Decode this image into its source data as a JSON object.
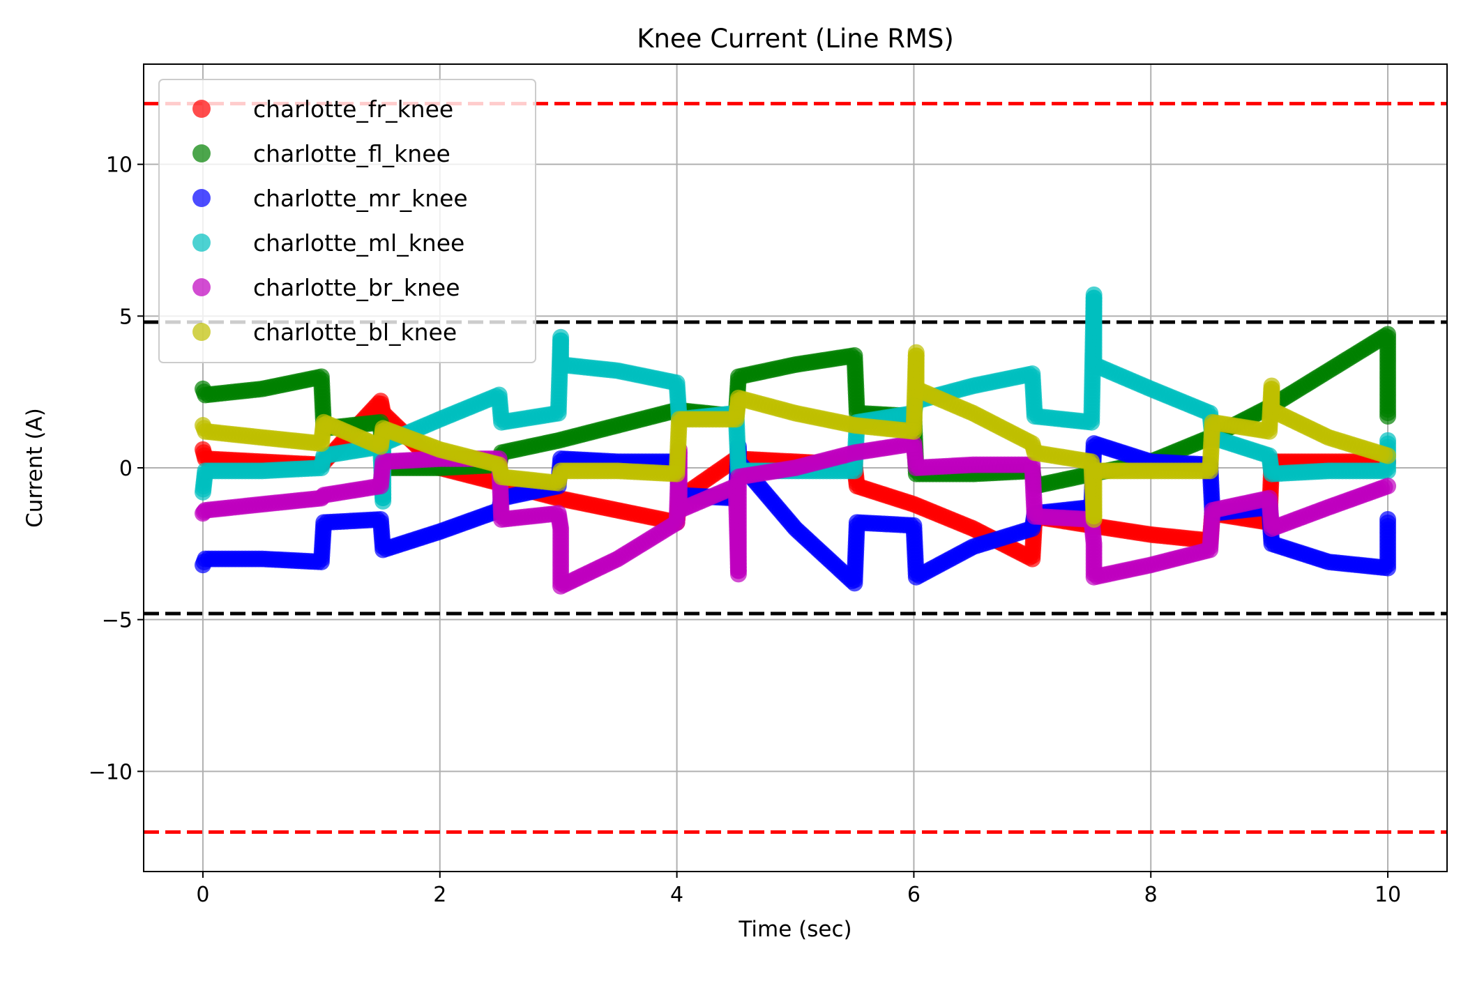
{
  "chart_data": {
    "type": "scatter",
    "title": "Knee Current (Line RMS)",
    "xlabel": "Time (sec)",
    "ylabel": "Current (A)",
    "xlim": [
      -0.5,
      10.5
    ],
    "ylim": [
      -13.3,
      13.3
    ],
    "xticks": [
      0,
      2,
      4,
      6,
      8,
      10
    ],
    "yticks": [
      -10,
      -5,
      0,
      5,
      10
    ],
    "xtick_labels": [
      "0",
      "2",
      "4",
      "6",
      "8",
      "10"
    ],
    "ytick_labels": [
      "−10",
      "−5",
      "0",
      "5",
      "10"
    ],
    "grid": true,
    "legend_position": "upper-left",
    "reference_lines": [
      {
        "y": 12,
        "color": "#ff0000",
        "style": "dashed"
      },
      {
        "y": -12,
        "color": "#ff0000",
        "style": "dashed"
      },
      {
        "y": 4.8,
        "color": "#000000",
        "style": "dashed"
      },
      {
        "y": -4.8,
        "color": "#000000",
        "style": "dashed"
      }
    ],
    "series": [
      {
        "name": "charlotte_fr_knee",
        "color": "#ff0000",
        "points": [
          [
            0,
            0.6
          ],
          [
            0.02,
            0.3
          ],
          [
            0.5,
            0.2
          ],
          [
            1.0,
            0.1
          ],
          [
            1.5,
            2.2
          ],
          [
            1.52,
            1.8
          ],
          [
            2.0,
            0.0
          ],
          [
            2.5,
            -0.5
          ],
          [
            3.0,
            -1.0
          ],
          [
            3.5,
            -1.4
          ],
          [
            4.0,
            -1.8
          ],
          [
            4.02,
            -1.0
          ],
          [
            4.5,
            0.3
          ],
          [
            5.0,
            0.2
          ],
          [
            5.5,
            0.1
          ],
          [
            5.52,
            -0.6
          ],
          [
            6.0,
            -1.2
          ],
          [
            6.5,
            -2.0
          ],
          [
            7.0,
            -3.0
          ],
          [
            7.02,
            -1.6
          ],
          [
            7.5,
            -1.9
          ],
          [
            8.0,
            -2.2
          ],
          [
            8.5,
            -2.4
          ],
          [
            8.52,
            -1.5
          ],
          [
            9.0,
            -1.8
          ],
          [
            9.02,
            0.2
          ],
          [
            9.5,
            0.2
          ],
          [
            10.0,
            0.2
          ]
        ]
      },
      {
        "name": "charlotte_fl_knee",
        "color": "#008000",
        "points": [
          [
            0,
            2.6
          ],
          [
            0.02,
            2.4
          ],
          [
            0.5,
            2.6
          ],
          [
            1.0,
            3.0
          ],
          [
            1.02,
            1.3
          ],
          [
            1.5,
            1.5
          ],
          [
            1.52,
            0.0
          ],
          [
            2.0,
            0.0
          ],
          [
            2.5,
            0.1
          ],
          [
            2.52,
            0.5
          ],
          [
            3.0,
            0.9
          ],
          [
            3.5,
            1.4
          ],
          [
            4.0,
            1.9
          ],
          [
            4.5,
            1.7
          ],
          [
            4.52,
            3.0
          ],
          [
            5.0,
            3.4
          ],
          [
            5.5,
            3.7
          ],
          [
            5.52,
            1.8
          ],
          [
            6.0,
            1.7
          ],
          [
            6.02,
            -0.2
          ],
          [
            6.5,
            -0.2
          ],
          [
            7.0,
            -0.1
          ],
          [
            7.02,
            -0.6
          ],
          [
            7.5,
            -0.2
          ],
          [
            8.0,
            0.2
          ],
          [
            8.5,
            1.0
          ],
          [
            9.0,
            2.0
          ],
          [
            9.5,
            3.2
          ],
          [
            10.0,
            4.4
          ],
          [
            10.0,
            1.7
          ]
        ]
      },
      {
        "name": "charlotte_mr_knee",
        "color": "#0000ff",
        "points": [
          [
            0,
            -3.2
          ],
          [
            0.02,
            -3.0
          ],
          [
            0.5,
            -3.0
          ],
          [
            1.0,
            -3.1
          ],
          [
            1.02,
            -1.8
          ],
          [
            1.5,
            -1.7
          ],
          [
            1.52,
            -2.7
          ],
          [
            2.0,
            -2.1
          ],
          [
            2.5,
            -1.4
          ],
          [
            2.52,
            -1.0
          ],
          [
            3.0,
            -0.6
          ],
          [
            3.02,
            0.3
          ],
          [
            3.5,
            0.2
          ],
          [
            4.0,
            0.2
          ],
          [
            4.02,
            -0.9
          ],
          [
            4.5,
            -1.0
          ],
          [
            4.52,
            0.7
          ],
          [
            4.52,
            0.2
          ],
          [
            5.0,
            -2.0
          ],
          [
            5.5,
            -3.8
          ],
          [
            5.52,
            -1.8
          ],
          [
            6.0,
            -1.9
          ],
          [
            6.02,
            -3.6
          ],
          [
            6.5,
            -2.6
          ],
          [
            7.0,
            -2.0
          ],
          [
            7.02,
            -1.5
          ],
          [
            7.5,
            -1.3
          ],
          [
            7.52,
            0.8
          ],
          [
            8.0,
            0.2
          ],
          [
            8.5,
            0.1
          ],
          [
            8.52,
            -1.5
          ],
          [
            9.0,
            -1.3
          ],
          [
            9.02,
            -2.5
          ],
          [
            9.5,
            -3.1
          ],
          [
            10.0,
            -3.3
          ],
          [
            10.0,
            -1.7
          ]
        ]
      },
      {
        "name": "charlotte_ml_knee",
        "color": "#00bfbf",
        "points": [
          [
            0,
            -0.8
          ],
          [
            0.02,
            -0.1
          ],
          [
            0.5,
            -0.1
          ],
          [
            1.0,
            0.0
          ],
          [
            1.02,
            0.4
          ],
          [
            1.5,
            0.7
          ],
          [
            1.52,
            -1.1
          ],
          [
            1.52,
            0.8
          ],
          [
            2.0,
            1.6
          ],
          [
            2.5,
            2.4
          ],
          [
            2.52,
            1.5
          ],
          [
            3.0,
            1.8
          ],
          [
            3.02,
            4.3
          ],
          [
            3.02,
            3.4
          ],
          [
            3.5,
            3.2
          ],
          [
            4.0,
            2.8
          ],
          [
            4.02,
            1.6
          ],
          [
            4.5,
            1.8
          ],
          [
            4.52,
            -0.1
          ],
          [
            5.0,
            -0.1
          ],
          [
            5.5,
            -0.1
          ],
          [
            5.52,
            1.5
          ],
          [
            6.0,
            1.8
          ],
          [
            6.02,
            2.2
          ],
          [
            6.5,
            2.7
          ],
          [
            7.0,
            3.1
          ],
          [
            7.02,
            1.7
          ],
          [
            7.5,
            1.5
          ],
          [
            7.52,
            5.7
          ],
          [
            7.52,
            4.2
          ],
          [
            7.52,
            3.4
          ],
          [
            8.0,
            2.6
          ],
          [
            8.5,
            1.8
          ],
          [
            8.52,
            1.0
          ],
          [
            9.0,
            0.4
          ],
          [
            9.02,
            -0.2
          ],
          [
            9.5,
            -0.1
          ],
          [
            10.0,
            -0.1
          ],
          [
            10.0,
            0.9
          ]
        ]
      },
      {
        "name": "charlotte_br_knee",
        "color": "#bf00bf",
        "points": [
          [
            0,
            -1.5
          ],
          [
            0.02,
            -1.4
          ],
          [
            0.5,
            -1.2
          ],
          [
            1.0,
            -1.0
          ],
          [
            1.02,
            -0.9
          ],
          [
            1.5,
            -0.6
          ],
          [
            1.52,
            0.2
          ],
          [
            2.0,
            0.3
          ],
          [
            2.5,
            0.3
          ],
          [
            2.52,
            -1.7
          ],
          [
            3.0,
            -1.5
          ],
          [
            3.02,
            -2.0
          ],
          [
            3.02,
            -3.9
          ],
          [
            3.5,
            -3.0
          ],
          [
            4.0,
            -1.8
          ],
          [
            4.02,
            0.6
          ],
          [
            4.02,
            -1.4
          ],
          [
            4.5,
            -0.6
          ],
          [
            4.52,
            -3.5
          ],
          [
            4.52,
            -0.3
          ],
          [
            5.0,
            0.0
          ],
          [
            5.5,
            0.5
          ],
          [
            6.0,
            0.8
          ],
          [
            6.02,
            0.0
          ],
          [
            6.5,
            0.1
          ],
          [
            7.0,
            0.1
          ],
          [
            7.02,
            -1.6
          ],
          [
            7.5,
            -1.7
          ],
          [
            7.52,
            -2.5
          ],
          [
            7.52,
            -3.6
          ],
          [
            8.0,
            -3.2
          ],
          [
            8.5,
            -2.7
          ],
          [
            8.52,
            -1.4
          ],
          [
            9.0,
            -1.0
          ],
          [
            9.02,
            -2.0
          ],
          [
            9.5,
            -1.3
          ],
          [
            10.0,
            -0.6
          ]
        ]
      },
      {
        "name": "charlotte_bl_knee",
        "color": "#bfbf00",
        "points": [
          [
            0,
            1.4
          ],
          [
            0.02,
            1.2
          ],
          [
            0.5,
            1.0
          ],
          [
            1.0,
            0.8
          ],
          [
            1.02,
            1.5
          ],
          [
            1.5,
            0.7
          ],
          [
            1.52,
            1.3
          ],
          [
            2.0,
            0.6
          ],
          [
            2.5,
            0.1
          ],
          [
            2.52,
            -0.3
          ],
          [
            3.0,
            -0.5
          ],
          [
            3.02,
            -0.1
          ],
          [
            3.5,
            -0.1
          ],
          [
            4.0,
            -0.2
          ],
          [
            4.02,
            1.6
          ],
          [
            4.5,
            1.6
          ],
          [
            4.52,
            2.3
          ],
          [
            5.0,
            1.8
          ],
          [
            5.5,
            1.4
          ],
          [
            6.0,
            1.2
          ],
          [
            6.02,
            3.8
          ],
          [
            6.02,
            2.6
          ],
          [
            6.5,
            1.8
          ],
          [
            7.0,
            0.8
          ],
          [
            7.02,
            0.5
          ],
          [
            7.5,
            0.2
          ],
          [
            7.52,
            -1.7
          ],
          [
            7.52,
            -0.1
          ],
          [
            8.0,
            -0.1
          ],
          [
            8.5,
            -0.1
          ],
          [
            8.52,
            1.5
          ],
          [
            9.0,
            1.2
          ],
          [
            9.02,
            2.7
          ],
          [
            9.02,
            1.9
          ],
          [
            9.5,
            1.0
          ],
          [
            10.0,
            0.4
          ]
        ]
      }
    ]
  }
}
